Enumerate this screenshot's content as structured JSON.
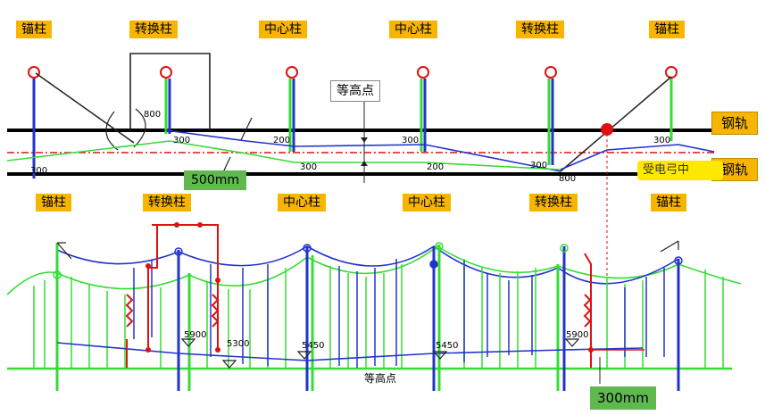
{
  "top_labels": [
    "锚柱",
    "转换柱",
    "中心柱",
    "中心柱",
    "转换柱",
    "锚柱"
  ],
  "bottom_labels": [
    "锚柱",
    "转换柱",
    "中心柱",
    "中心柱",
    "转换柱",
    "锚柱"
  ],
  "rail_label_1": "钢轨",
  "rail_label_2": "钢轨",
  "equal_height_label": "等高点",
  "equal_height_label_bottom": "等高点",
  "pantograph_label": "受电弓中",
  "dim_500": "500mm",
  "dim_300mm": "300mm",
  "top_measures": {
    "m800a": "800",
    "m300a": "300",
    "m300b": "300",
    "m200a": "200",
    "m300c": "300",
    "m300d": "300",
    "m200b": "200",
    "m300e": "300",
    "m300f": "300",
    "m800b": "800"
  },
  "bottom_measures": {
    "m5900a": "5900",
    "m5300": "5300",
    "m5450a": "5450",
    "m5450b": "5450",
    "m5900b": "5900"
  },
  "colors": {
    "tag_bg": "#f7b500",
    "green_wire": "#33dd33",
    "blue_wire": "#2233cc",
    "red": "#e01010",
    "rail": "#000000"
  }
}
